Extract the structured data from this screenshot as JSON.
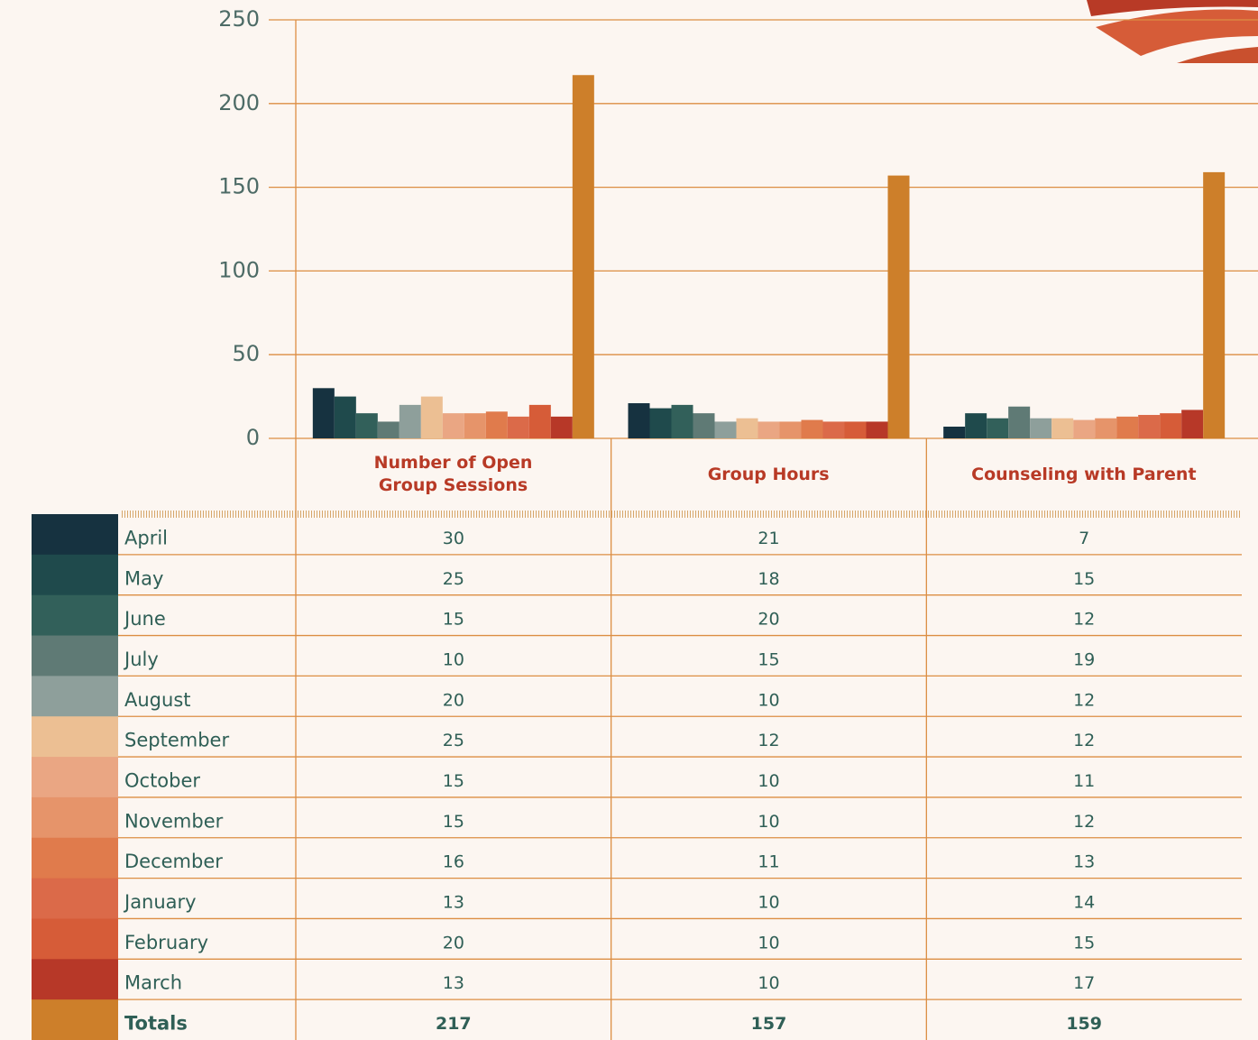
{
  "chart_data": {
    "type": "bar",
    "categories": [
      "Number of Open\nGroup Sessions",
      "Group Hours",
      "Counseling with Parent"
    ],
    "series": [
      {
        "name": "April",
        "color": "#163240",
        "values": [
          30,
          21,
          7
        ]
      },
      {
        "name": "May",
        "color": "#1f4a4c",
        "values": [
          25,
          18,
          15
        ]
      },
      {
        "name": "June",
        "color": "#32605a",
        "values": [
          15,
          20,
          12
        ]
      },
      {
        "name": "July",
        "color": "#5f7a75",
        "values": [
          10,
          15,
          19
        ]
      },
      {
        "name": "August",
        "color": "#8e9f9b",
        "values": [
          20,
          10,
          12
        ]
      },
      {
        "name": "September",
        "color": "#ecbf93",
        "values": [
          25,
          12,
          12
        ]
      },
      {
        "name": "October",
        "color": "#eaa683",
        "values": [
          15,
          10,
          11
        ]
      },
      {
        "name": "November",
        "color": "#e6946a",
        "values": [
          15,
          10,
          12
        ]
      },
      {
        "name": "December",
        "color": "#e07b4c",
        "values": [
          16,
          11,
          13
        ]
      },
      {
        "name": "January",
        "color": "#db6a49",
        "values": [
          13,
          10,
          14
        ]
      },
      {
        "name": "February",
        "color": "#d65c38",
        "values": [
          20,
          10,
          15
        ]
      },
      {
        "name": "March",
        "color": "#b73828",
        "values": [
          13,
          10,
          17
        ]
      },
      {
        "name": "Totals",
        "color": "#cd7f2a",
        "values": [
          217,
          157,
          159
        ]
      }
    ],
    "ylim": [
      0,
      250
    ],
    "yticks": [
      0,
      50,
      100,
      150,
      200,
      250
    ],
    "grid": true
  }
}
